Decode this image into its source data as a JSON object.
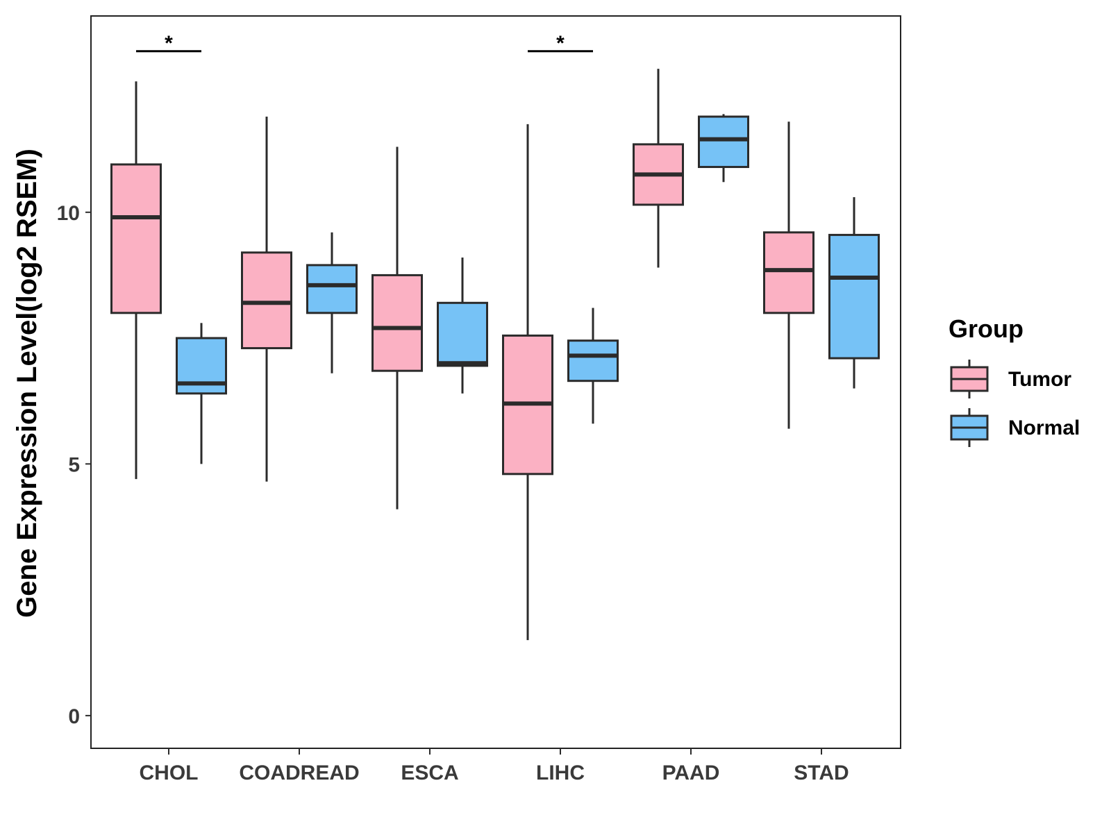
{
  "chart_data": {
    "type": "boxplot",
    "ylabel": "Gene Expression Level(log2 RSEM)",
    "xlabel": "",
    "ylim": [
      -0.65,
      13.9
    ],
    "yticks": [
      0,
      5,
      10
    ],
    "grid": false,
    "categories": [
      "CHOL",
      "COADREAD",
      "ESCA",
      "LIHC",
      "PAAD",
      "STAD"
    ],
    "series": [
      {
        "name": "Tumor",
        "color": "#FBB1C3",
        "boxes": [
          {
            "category": "CHOL",
            "min": 4.7,
            "q1": 8.0,
            "median": 9.9,
            "q3": 10.95,
            "max": 12.6
          },
          {
            "category": "COADREAD",
            "min": 4.65,
            "q1": 7.3,
            "median": 8.2,
            "q3": 9.2,
            "max": 11.9
          },
          {
            "category": "ESCA",
            "min": 4.1,
            "q1": 6.85,
            "median": 7.7,
            "q3": 8.75,
            "max": 11.3
          },
          {
            "category": "LIHC",
            "min": 1.5,
            "q1": 4.8,
            "median": 6.2,
            "q3": 7.55,
            "max": 11.75
          },
          {
            "category": "PAAD",
            "min": 8.9,
            "q1": 10.15,
            "median": 10.75,
            "q3": 11.35,
            "max": 12.85
          },
          {
            "category": "STAD",
            "min": 5.7,
            "q1": 8.0,
            "median": 8.85,
            "q3": 9.6,
            "max": 11.8
          }
        ]
      },
      {
        "name": "Normal",
        "color": "#76C2F6",
        "boxes": [
          {
            "category": "CHOL",
            "min": 5.0,
            "q1": 6.4,
            "median": 6.6,
            "q3": 7.5,
            "max": 7.8
          },
          {
            "category": "COADREAD",
            "min": 6.8,
            "q1": 8.0,
            "median": 8.55,
            "q3": 8.95,
            "max": 9.6
          },
          {
            "category": "ESCA",
            "min": 6.4,
            "q1": 6.95,
            "median": 7.0,
            "q3": 8.2,
            "max": 9.1
          },
          {
            "category": "LIHC",
            "min": 5.8,
            "q1": 6.65,
            "median": 7.15,
            "q3": 7.45,
            "max": 8.1
          },
          {
            "category": "PAAD",
            "min": 10.6,
            "q1": 10.9,
            "median": 11.45,
            "q3": 11.9,
            "max": 11.95
          },
          {
            "category": "STAD",
            "min": 6.5,
            "q1": 7.1,
            "median": 8.7,
            "q3": 9.55,
            "max": 10.3
          }
        ]
      }
    ],
    "annotations": [
      {
        "category": "CHOL",
        "label": "*",
        "y": 13.2
      },
      {
        "category": "LIHC",
        "label": "*",
        "y": 13.2
      }
    ],
    "legend": {
      "title": "Group",
      "position": "right",
      "items": [
        {
          "label": "Tumor",
          "color": "#FBB1C3"
        },
        {
          "label": "Normal",
          "color": "#76C2F6"
        }
      ]
    }
  }
}
